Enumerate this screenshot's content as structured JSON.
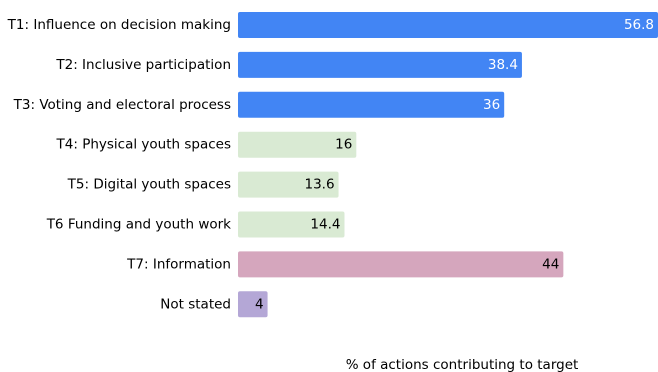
{
  "chart_data": {
    "type": "bar",
    "orientation": "horizontal",
    "categories": [
      "T1: Influence on decision making",
      "T2: Inclusive participation",
      "T3: Voting and electoral process",
      "T4: Physical youth spaces",
      "T5: Digital youth spaces",
      "T6 Funding and youth work",
      "T7: Information",
      "Not stated"
    ],
    "values": [
      56.8,
      38.4,
      36,
      16,
      13.6,
      14.4,
      44,
      4
    ],
    "value_labels": [
      "56.8",
      "38.4",
      "36",
      "16",
      "13.6",
      "14.4",
      "44",
      "4"
    ],
    "colors": [
      "#4285f4",
      "#4285f4",
      "#4285f4",
      "#d9ead3",
      "#d9ead3",
      "#d9ead3",
      "#d5a6bd",
      "#b4a7d6"
    ],
    "label_colors": [
      "#ffffff",
      "#ffffff",
      "#ffffff",
      "#000000",
      "#000000",
      "#000000",
      "#000000",
      "#000000"
    ],
    "title": "",
    "xlabel": "% of actions contributing to target",
    "ylabel": "",
    "xlim": [
      0,
      56.8
    ],
    "grid": false,
    "legend": "none"
  }
}
